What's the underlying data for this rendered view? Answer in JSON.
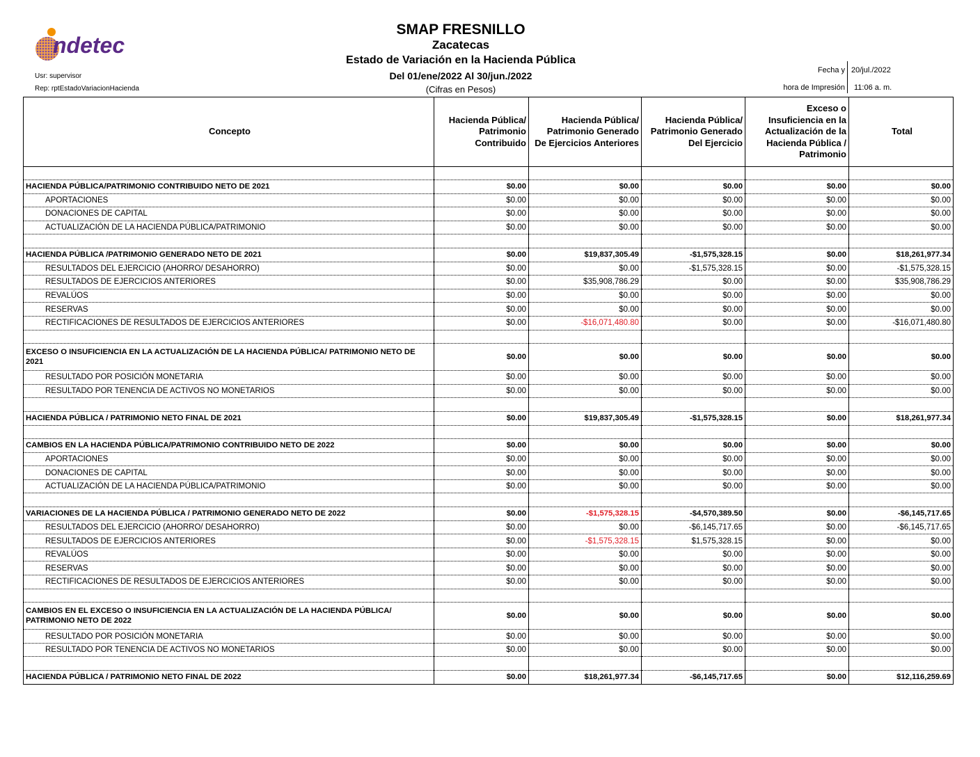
{
  "logo": {
    "text": "indetec",
    "colors": {
      "purple": "#5b2a86",
      "orange": "#f39200"
    }
  },
  "header": {
    "title": "SMAP FRESNILLO",
    "subtitle": "Zacatecas",
    "report_name": "Estado de Variación en la Hacienda Pública",
    "period": "Del 01/ene/2022 Al 30/jun./2022",
    "units": "(Cifras en Pesos)",
    "user": "Usr: supervisor",
    "report_id": "Rep: rptEstadoVariacionHacienda",
    "date_label": "Fecha y",
    "date_value": "20/jul./2022",
    "time_label": "hora de Impresión",
    "time_value": "11:06 a. m."
  },
  "columns": [
    "Concepto",
    "Hacienda Pública/ Patrimonio Contribuido",
    "Hacienda Pública/ Patrimonio Generado De Ejercicios Anteriores",
    "Hacienda Pública/ Patrimonio Generado Del Ejercicio",
    "Exceso o Insuficiencia en la Actualización de la Hacienda Pública / Patrimonio",
    "Total"
  ],
  "colors": {
    "negative_highlight": "#e01b24"
  },
  "rows": [
    {
      "type": "spacer",
      "concept": "",
      "values": [
        "",
        "",
        "",
        "",
        ""
      ]
    },
    {
      "type": "header",
      "concept": "HACIENDA PÚBLICA/PATRIMONIO CONTRIBUIDO NETO DE 2021",
      "values": [
        "$0.00",
        "$0.00",
        "$0.00",
        "$0.00",
        "$0.00"
      ]
    },
    {
      "type": "item",
      "concept": "APORTACIONES",
      "values": [
        "$0.00",
        "$0.00",
        "$0.00",
        "$0.00",
        "$0.00"
      ]
    },
    {
      "type": "item",
      "concept": "DONACIONES DE CAPITAL",
      "values": [
        "$0.00",
        "$0.00",
        "$0.00",
        "$0.00",
        "$0.00"
      ]
    },
    {
      "type": "item",
      "concept": "ACTUALIZACIÓN DE LA HACIENDA PÚBLICA/PATRIMONIO",
      "values": [
        "$0.00",
        "$0.00",
        "$0.00",
        "$0.00",
        "$0.00"
      ]
    },
    {
      "type": "blank",
      "concept": "",
      "values": [
        "",
        "",
        "",
        "",
        ""
      ]
    },
    {
      "type": "header",
      "concept": "HACIENDA PÚBLICA /PATRIMONIO GENERADO NETO DE 2021",
      "values": [
        "$0.00",
        "$19,837,305.49",
        "-$1,575,328.15",
        "$0.00",
        "$18,261,977.34"
      ]
    },
    {
      "type": "item",
      "concept": "RESULTADOS DEL EJERCICIO (AHORRO/ DESAHORRO)",
      "values": [
        "$0.00",
        "$0.00",
        "-$1,575,328.15",
        "$0.00",
        "-$1,575,328.15"
      ]
    },
    {
      "type": "item",
      "concept": "RESULTADOS DE EJERCICIOS ANTERIORES",
      "values": [
        "$0.00",
        "$35,908,786.29",
        "$0.00",
        "$0.00",
        "$35,908,786.29"
      ]
    },
    {
      "type": "item",
      "concept": "REVALÚOS",
      "values": [
        "$0.00",
        "$0.00",
        "$0.00",
        "$0.00",
        "$0.00"
      ]
    },
    {
      "type": "item",
      "concept": "RESERVAS",
      "values": [
        "$0.00",
        "$0.00",
        "$0.00",
        "$0.00",
        "$0.00"
      ]
    },
    {
      "type": "item",
      "concept": "RECTIFICACIONES DE RESULTADOS DE EJERCICIOS ANTERIORES",
      "values": [
        "$0.00",
        "-$16,071,480.80",
        "$0.00",
        "$0.00",
        "-$16,071,480.80"
      ],
      "red": [
        1
      ]
    },
    {
      "type": "blank",
      "concept": "",
      "values": [
        "",
        "",
        "",
        "",
        ""
      ]
    },
    {
      "type": "header tall",
      "concept": "EXCESO O INSUFICIENCIA EN LA ACTUALIZACIÓN DE LA HACIENDA PÚBLICA/ PATRIMONIO NETO DE 2021",
      "values": [
        "$0.00",
        "$0.00",
        "$0.00",
        "$0.00",
        "$0.00"
      ]
    },
    {
      "type": "item",
      "concept": "RESULTADO POR POSICIÓN MONETARIA",
      "values": [
        "$0.00",
        "$0.00",
        "$0.00",
        "$0.00",
        "$0.00"
      ]
    },
    {
      "type": "item",
      "concept": "RESULTADO POR TENENCIA DE ACTIVOS NO MONETARIOS",
      "values": [
        "$0.00",
        "$0.00",
        "$0.00",
        "$0.00",
        "$0.00"
      ]
    },
    {
      "type": "blank",
      "concept": "",
      "values": [
        "",
        "",
        "",
        "",
        ""
      ]
    },
    {
      "type": "total",
      "concept": "HACIENDA PÚBLICA / PATRIMONIO  NETO  FINAL DE 2021",
      "values": [
        "$0.00",
        "$19,837,305.49",
        "-$1,575,328.15",
        "$0.00",
        "$18,261,977.34"
      ]
    },
    {
      "type": "blank",
      "concept": "",
      "values": [
        "",
        "",
        "",
        "",
        ""
      ]
    },
    {
      "type": "header",
      "concept": "CAMBIOS EN LA HACIENDA PÚBLICA/PATRIMONIO CONTRIBUIDO NETO DE 2022",
      "values": [
        "$0.00",
        "$0.00",
        "$0.00",
        "$0.00",
        "$0.00"
      ]
    },
    {
      "type": "item",
      "concept": "APORTACIONES",
      "values": [
        "$0.00",
        "$0.00",
        "$0.00",
        "$0.00",
        "$0.00"
      ]
    },
    {
      "type": "item",
      "concept": "DONACIONES DE CAPITAL",
      "values": [
        "$0.00",
        "$0.00",
        "$0.00",
        "$0.00",
        "$0.00"
      ]
    },
    {
      "type": "item",
      "concept": "ACTUALIZACIÓN DE LA HACIENDA PÚBLICA/PATRIMONIO",
      "values": [
        "$0.00",
        "$0.00",
        "$0.00",
        "$0.00",
        "$0.00"
      ]
    },
    {
      "type": "blank",
      "concept": "",
      "values": [
        "",
        "",
        "",
        "",
        ""
      ]
    },
    {
      "type": "header",
      "concept": "VARIACIONES DE LA HACIENDA PÚBLICA / PATRIMONIO GENERADO NETO DE 2022",
      "values": [
        "$0.00",
        "-$1,575,328.15",
        "-$4,570,389.50",
        "$0.00",
        "-$6,145,717.65"
      ],
      "red": [
        1
      ]
    },
    {
      "type": "item",
      "concept": "RESULTADOS DEL EJERCICIO (AHORRO/ DESAHORRO)",
      "values": [
        "$0.00",
        "$0.00",
        "-$6,145,717.65",
        "$0.00",
        "-$6,145,717.65"
      ]
    },
    {
      "type": "item",
      "concept": "RESULTADOS DE EJERCICIOS ANTERIORES",
      "values": [
        "$0.00",
        "-$1,575,328.15",
        "$1,575,328.15",
        "$0.00",
        "$0.00"
      ],
      "red": [
        1
      ]
    },
    {
      "type": "item",
      "concept": "REVALÚOS",
      "values": [
        "$0.00",
        "$0.00",
        "$0.00",
        "$0.00",
        "$0.00"
      ]
    },
    {
      "type": "item",
      "concept": "RESERVAS",
      "values": [
        "$0.00",
        "$0.00",
        "$0.00",
        "$0.00",
        "$0.00"
      ]
    },
    {
      "type": "item",
      "concept": "RECTIFICACIONES DE RESULTADOS DE EJERCICIOS ANTERIORES",
      "values": [
        "$0.00",
        "$0.00",
        "$0.00",
        "$0.00",
        "$0.00"
      ]
    },
    {
      "type": "blank",
      "concept": "",
      "values": [
        "",
        "",
        "",
        "",
        ""
      ]
    },
    {
      "type": "header tall",
      "concept": "CAMBIOS EN EL EXCESO O INSUFICIENCIA EN LA ACTUALIZACIÓN DE LA HACIENDA PÚBLICA/ PATRIMONIO NETO DE 2022",
      "values": [
        "$0.00",
        "$0.00",
        "$0.00",
        "$0.00",
        "$0.00"
      ]
    },
    {
      "type": "item",
      "concept": "RESULTADO POR POSICIÓN MONETARIA",
      "values": [
        "$0.00",
        "$0.00",
        "$0.00",
        "$0.00",
        "$0.00"
      ]
    },
    {
      "type": "item",
      "concept": "RESULTADO POR TENENCIA DE ACTIVOS NO MONETARIOS",
      "values": [
        "$0.00",
        "$0.00",
        "$0.00",
        "$0.00",
        "$0.00"
      ]
    },
    {
      "type": "blank",
      "concept": "",
      "values": [
        "",
        "",
        "",
        "",
        ""
      ]
    },
    {
      "type": "total last",
      "concept": "HACIENDA PÚBLICA / PATRIMONIO NETO FINAL DE 2022",
      "values": [
        "$0.00",
        "$18,261,977.34",
        "-$6,145,717.65",
        "$0.00",
        "$12,116,259.69"
      ]
    }
  ]
}
